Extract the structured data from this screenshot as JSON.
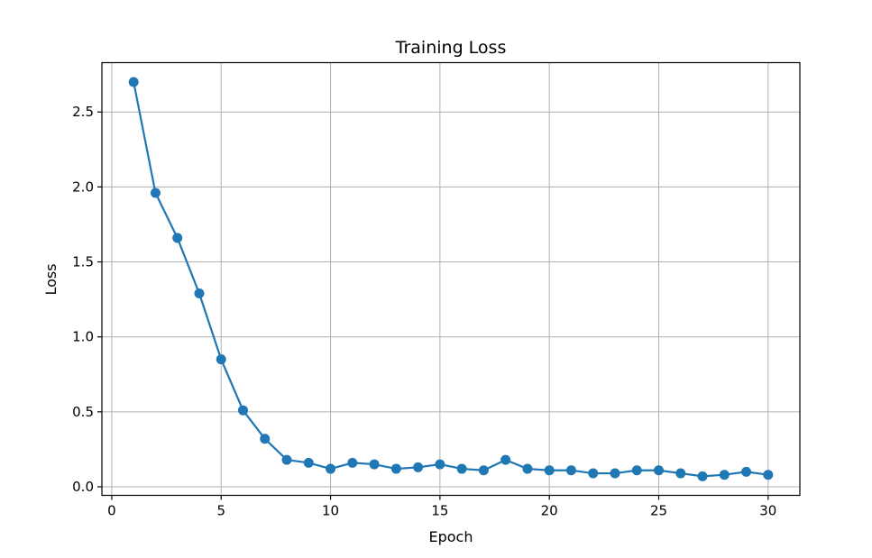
{
  "chart_data": {
    "type": "line",
    "title": "Training Loss",
    "xlabel": "Epoch",
    "ylabel": "Loss",
    "xlim": [
      -0.45,
      31.45
    ],
    "ylim": [
      -0.057,
      2.829
    ],
    "xticks": [
      0,
      5,
      10,
      15,
      20,
      25,
      30
    ],
    "xtick_labels": [
      "0",
      "5",
      "10",
      "15",
      "20",
      "25",
      "30"
    ],
    "yticks": [
      0.0,
      0.5,
      1.0,
      1.5,
      2.0,
      2.5
    ],
    "ytick_labels": [
      "0.0",
      "0.5",
      "1.0",
      "1.5",
      "2.0",
      "2.5"
    ],
    "grid": true,
    "series": [
      {
        "color": "#1f77b4",
        "marker": "circle",
        "x": [
          1,
          2,
          3,
          4,
          5,
          6,
          7,
          8,
          9,
          10,
          11,
          12,
          13,
          14,
          15,
          16,
          17,
          18,
          19,
          20,
          21,
          22,
          23,
          24,
          25,
          26,
          27,
          28,
          29,
          30
        ],
        "y": [
          2.7,
          1.96,
          1.66,
          1.29,
          0.85,
          0.51,
          0.32,
          0.18,
          0.16,
          0.12,
          0.16,
          0.15,
          0.12,
          0.13,
          0.15,
          0.12,
          0.11,
          0.18,
          0.12,
          0.11,
          0.11,
          0.09,
          0.09,
          0.11,
          0.11,
          0.09,
          0.07,
          0.08,
          0.1,
          0.08
        ]
      }
    ]
  }
}
